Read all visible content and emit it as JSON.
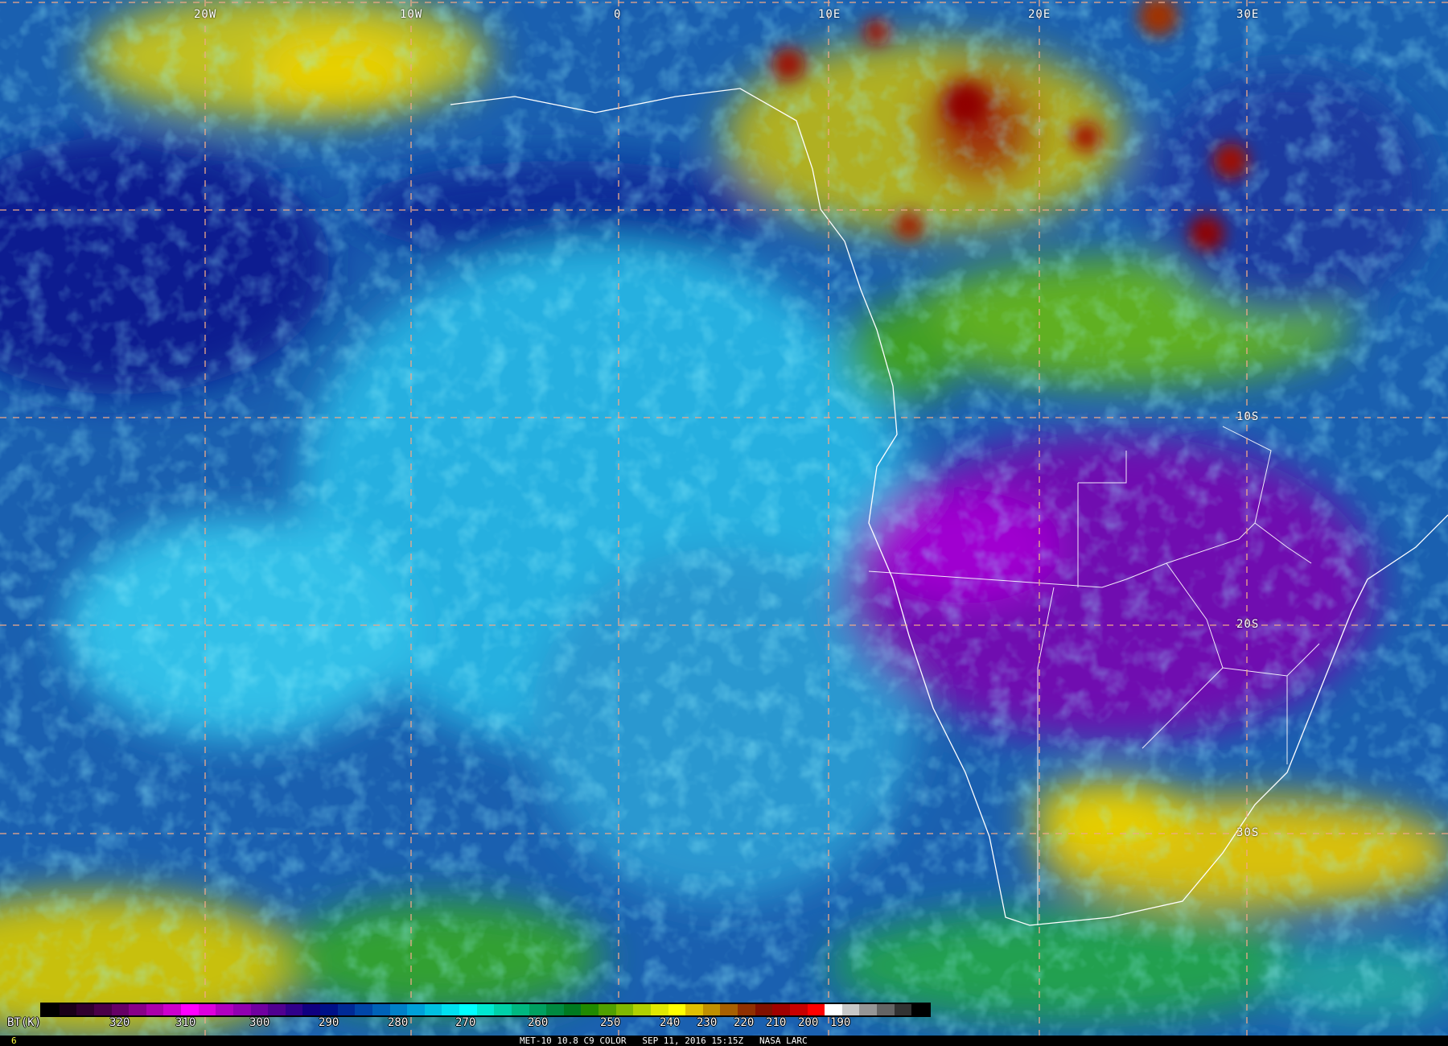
{
  "grid": {
    "longitude_labels": [
      "20W",
      "10W",
      "0",
      "10E",
      "20E",
      "30E"
    ],
    "latitude_labels": [
      "10S",
      "20S",
      "30S"
    ],
    "line_color": "#f0a888"
  },
  "colorbar": {
    "label": "BT(K)",
    "ticks": [
      "320",
      "310",
      "300",
      "290",
      "280",
      "270",
      "260",
      "250",
      "240",
      "230",
      "220",
      "210",
      "200",
      "190"
    ],
    "colors": [
      "#000000",
      "#1a0018",
      "#30002e",
      "#4a0048",
      "#660066",
      "#880088",
      "#aa00aa",
      "#cc00cc",
      "#ff00ff",
      "#dd00dd",
      "#b000c0",
      "#9000b0",
      "#7000a0",
      "#500090",
      "#30008a",
      "#100080",
      "#001088",
      "#002a96",
      "#0046a8",
      "#0062b8",
      "#0080c8",
      "#00a0d8",
      "#00c0e0",
      "#00e0f0",
      "#00ffff",
      "#00e8d0",
      "#00d0a8",
      "#00b880",
      "#00a060",
      "#008a40",
      "#007a20",
      "#208a00",
      "#50a000",
      "#80b800",
      "#b0d000",
      "#e0e800",
      "#ffff00",
      "#e0c000",
      "#c09000",
      "#a86000",
      "#903000",
      "#801000",
      "#a00000",
      "#c80000",
      "#ff0000",
      "#ffffff",
      "#c8c8c8",
      "#969696",
      "#646464",
      "#323232",
      "#000000"
    ]
  },
  "footer": {
    "frame_number": "6",
    "caption": "MET-10 10.8 C9 COLOR   SEP 11, 2016 15:15Z   NASA LARC"
  }
}
